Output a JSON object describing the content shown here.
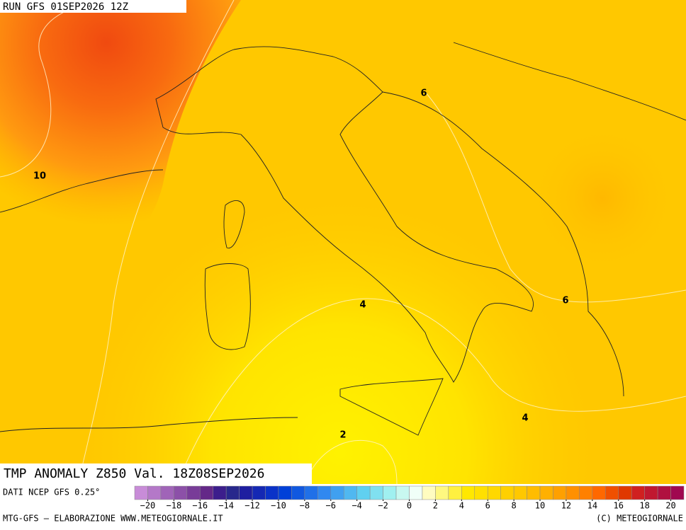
{
  "header": {
    "run": "RUN GFS 01SEP2026 12Z"
  },
  "map": {
    "contour_labels": [
      "10",
      "6",
      "6",
      "4",
      "4",
      "2"
    ]
  },
  "title": "TMP ANOMALY Z850 Val. 18Z08SEP2026",
  "source": "DATI NCEP GFS 0.25°",
  "colorbar": {
    "colors": [
      "#c88cd8",
      "#b478c8",
      "#a064b8",
      "#8c50a8",
      "#783c98",
      "#642888",
      "#3c1e8c",
      "#28288c",
      "#1e1ea0",
      "#1428b4",
      "#0a32c8",
      "#0040d8",
      "#1058e0",
      "#2070e8",
      "#3088f0",
      "#40a0f0",
      "#50b8f0",
      "#60d0f0",
      "#80e0f0",
      "#a0f0f0",
      "#c8f8f0",
      "#f0fff8",
      "#fffcc0",
      "#fff880",
      "#fff040",
      "#ffe800",
      "#ffe000",
      "#ffd800",
      "#ffd000",
      "#ffc800",
      "#ffbc00",
      "#ffb000",
      "#ffa000",
      "#ff9000",
      "#ff8000",
      "#ff6800",
      "#f05000",
      "#e03800",
      "#d02020",
      "#c01830",
      "#b01040",
      "#a00850"
    ],
    "ticks": [
      {
        "value": -20,
        "label": "−20"
      },
      {
        "value": -18,
        "label": "−18"
      },
      {
        "value": -16,
        "label": "−16"
      },
      {
        "value": -14,
        "label": "−14"
      },
      {
        "value": -12,
        "label": "−12"
      },
      {
        "value": -10,
        "label": "−10"
      },
      {
        "value": -8,
        "label": "−8"
      },
      {
        "value": -6,
        "label": "−6"
      },
      {
        "value": -4,
        "label": "−4"
      },
      {
        "value": -2,
        "label": "−2"
      },
      0,
      2,
      4,
      6,
      8,
      10,
      12,
      14,
      16,
      18,
      20
    ],
    "range": [
      -21,
      21
    ]
  },
  "footer": {
    "left": "MTG-GFS — ELABORAZIONE WWW.METEOGIORNALE.IT",
    "right": "(C) METEOGIORNALE"
  }
}
